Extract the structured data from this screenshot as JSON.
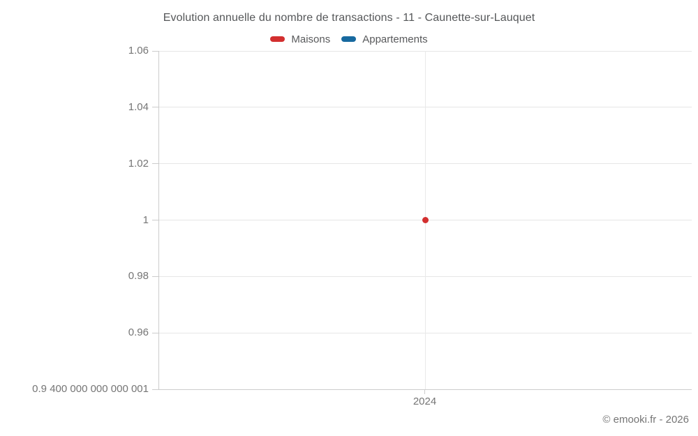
{
  "chart_data": {
    "type": "scatter",
    "title": "Evolution annuelle du nombre de transactions - 11 - Caunette-sur-Lauquet",
    "legend_position": "top",
    "legend": [
      {
        "label": "Maisons",
        "color": "#d32f2f"
      },
      {
        "label": "Appartements",
        "color": "#17699f"
      }
    ],
    "x_categories": [
      "2024"
    ],
    "ylim": [
      0.94,
      1.06
    ],
    "grid": true,
    "y_ticks": [
      {
        "label": "1.06",
        "value": 1.06
      },
      {
        "label": "1.04",
        "value": 1.04
      },
      {
        "label": "1.02",
        "value": 1.02
      },
      {
        "label": "1",
        "value": 1
      },
      {
        "label": "0.98",
        "value": 0.98
      },
      {
        "label": "0.96",
        "value": 0.96
      },
      {
        "label": "0.9 400 000 000 000 001",
        "value": 0.94
      }
    ],
    "series": [
      {
        "name": "Maisons",
        "color": "#d32f2f",
        "points": [
          {
            "x": "2024",
            "y": 1
          }
        ]
      },
      {
        "name": "Appartements",
        "color": "#17699f",
        "points": []
      }
    ],
    "watermark": "© emooki.fr - 2026"
  }
}
